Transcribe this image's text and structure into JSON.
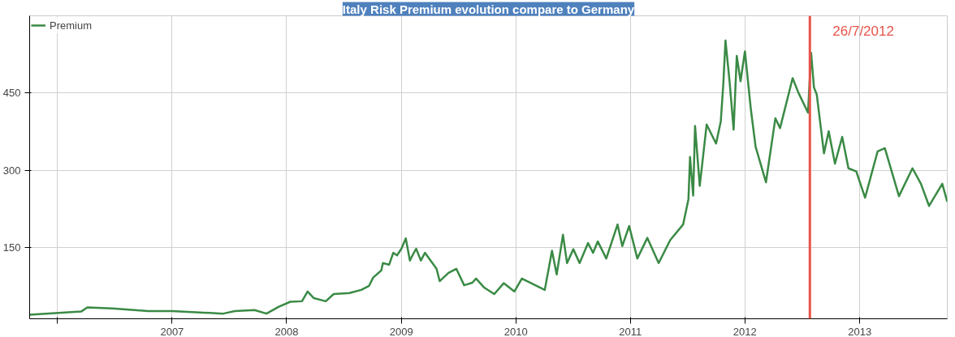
{
  "chart_data": {
    "type": "line",
    "title": "Italy Risk Premium evolution compare to Germany",
    "x": [
      "2005-10-04",
      "2006-03-17",
      "2006-04-06",
      "2006-06-25",
      "2006-10-17",
      "2007-01-01",
      "2007-06-13",
      "2007-07-20",
      "2007-09-21",
      "2007-10-29",
      "2007-12-06",
      "2008-01-13",
      "2008-02-19",
      "2008-03-08",
      "2008-03-28",
      "2008-05-05",
      "2008-05-30",
      "2008-07-19",
      "2008-08-26",
      "2008-09-20",
      "2008-10-03",
      "2008-10-29",
      "2008-11-03",
      "2008-11-23",
      "2008-12-06",
      "2008-12-18",
      "2009-01-01",
      "2009-01-15",
      "2009-01-28",
      "2009-02-07",
      "2009-02-17",
      "2009-03-04",
      "2009-03-17",
      "2009-04-23",
      "2009-05-03",
      "2009-05-31",
      "2009-06-25",
      "2009-07-20",
      "2009-08-15",
      "2009-08-27",
      "2009-09-21",
      "2009-10-24",
      "2009-11-23",
      "2009-12-27",
      "2010-01-20",
      "2010-04-03",
      "2010-04-26",
      "2010-05-11",
      "2010-05-31",
      "2010-06-13",
      "2010-07-03",
      "2010-07-23",
      "2010-08-19",
      "2010-09-04",
      "2010-09-19",
      "2010-10-16",
      "2010-11-21",
      "2010-12-06",
      "2010-12-28",
      "2011-01-23",
      "2011-02-24",
      "2011-04-01",
      "2011-05-08",
      "2011-06-18",
      "2011-07-05",
      "2011-07-10",
      "2011-07-20",
      "2011-07-26",
      "2011-08-10",
      "2011-09-01",
      "2011-10-01",
      "2011-10-16",
      "2011-10-24",
      "2011-10-31",
      "2011-11-13",
      "2011-11-26",
      "2011-12-06",
      "2011-12-18",
      "2012-01-01",
      "2012-01-20",
      "2012-02-04",
      "2012-03-08",
      "2012-04-07",
      "2012-04-22",
      "2012-06-01",
      "2012-06-20",
      "2012-07-20",
      "2012-07-30",
      "2012-08-08",
      "2012-08-17",
      "2012-09-09",
      "2012-09-24",
      "2012-10-14",
      "2012-11-06",
      "2012-11-26",
      "2012-12-21",
      "2013-01-18",
      "2013-02-07",
      "2013-02-27",
      "2013-03-22",
      "2013-05-06",
      "2013-06-18",
      "2013-07-15",
      "2013-08-10",
      "2013-09-21",
      "2013-10-07"
    ],
    "series": [
      {
        "name": "Premium",
        "color": "#3a8a45",
        "values": [
          20,
          26,
          34,
          32,
          27,
          27,
          22,
          27,
          29,
          22,
          35,
          45,
          46,
          65,
          52,
          46,
          60,
          62,
          68,
          76,
          92,
          106,
          120,
          117,
          140,
          135,
          148,
          168,
          125,
          137,
          148,
          125,
          140,
          109,
          85,
          101,
          109,
          77,
          82,
          90,
          73,
          60,
          81,
          65,
          90,
          68,
          144,
          98,
          175,
          120,
          147,
          120,
          159,
          140,
          162,
          129,
          195,
          153,
          192,
          129,
          169,
          120,
          165,
          195,
          244,
          326,
          251,
          386,
          270,
          389,
          352,
          395,
          467,
          552,
          473,
          379,
          522,
          473,
          531,
          418,
          346,
          277,
          401,
          382,
          479,
          450,
          412,
          528,
          461,
          447,
          333,
          376,
          313,
          365,
          304,
          298,
          247,
          292,
          337,
          343,
          250,
          304,
          274,
          231,
          274,
          239
        ]
      }
    ],
    "xlim": [
      "2005-10-04",
      "2013-10-07"
    ],
    "ylim": [
      12,
      600
    ],
    "xticks": [
      {
        "value": "2006-01-01",
        "label": null
      },
      {
        "value": "2007-01-01",
        "label": "2007"
      },
      {
        "value": "2008-01-01",
        "label": "2008"
      },
      {
        "value": "2009-01-01",
        "label": "2009"
      },
      {
        "value": "2010-01-01",
        "label": "2010"
      },
      {
        "value": "2011-01-01",
        "label": "2011"
      },
      {
        "value": "2012-01-01",
        "label": "2012"
      },
      {
        "value": "2013-01-01",
        "label": "2013"
      }
    ],
    "yticks": [
      150,
      300,
      450
    ],
    "ref_lines": [
      {
        "axis": "x",
        "value": "2012-07-26",
        "label": "26/7/2012",
        "color": "#e8534a"
      }
    ],
    "grid": true,
    "legend": "top left",
    "marker": "none",
    "line_style": "solid"
  }
}
